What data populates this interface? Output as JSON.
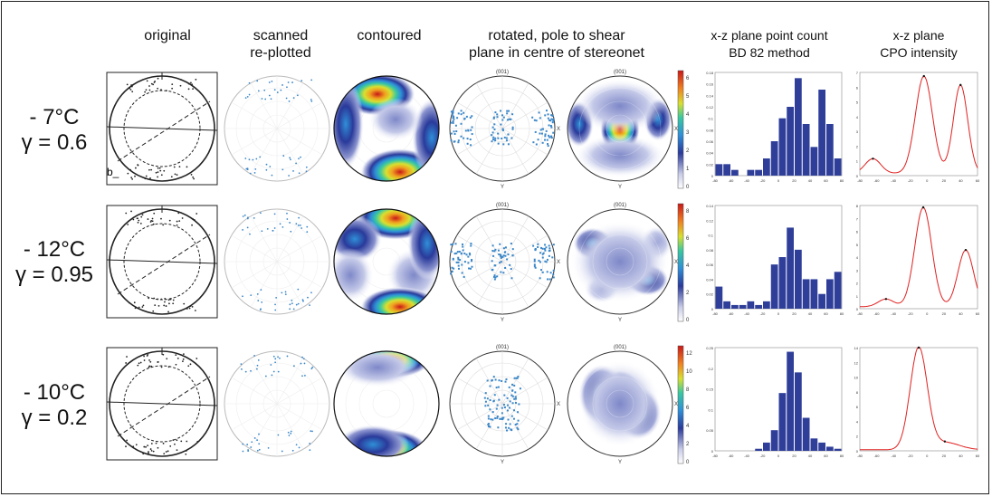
{
  "headers": {
    "original": "original",
    "scanned_1": "scanned",
    "scanned_2": "re-plotted",
    "contoured": "contoured",
    "rotated_1": "rotated, pole to shear",
    "rotated_2": "plane in centre of stereonet",
    "point_count_1": "x-z plane point count",
    "point_count_2": "BD 82 method",
    "cpo_1": "x-z plane",
    "cpo_2": "CPO intensity"
  },
  "net_labels": {
    "top": "(001)",
    "bottom": "Y",
    "right": "X"
  },
  "rows": [
    {
      "temp": "- 7°C",
      "gamma": "γ = 0.6",
      "colorbar_ticks": [
        "6",
        "5",
        "4",
        "3",
        "2",
        "1",
        "0"
      ],
      "hist": {
        "ymax": 0.18,
        "yticks": [
          "0.18",
          "0.16",
          "0.14",
          "0.12",
          "0.1",
          "0.08",
          "0.06",
          "0.04",
          "0.02",
          "0"
        ],
        "values": [
          0.02,
          0.02,
          0.01,
          0,
          0.01,
          0.01,
          0.03,
          0.06,
          0.1,
          0.12,
          0.17,
          0.09,
          0.05,
          0.15,
          0.09,
          0.03
        ]
      },
      "cpo": {
        "ymax": 7,
        "yticks": [
          "7",
          "6",
          "5",
          "4",
          "3",
          "2",
          "1",
          "0"
        ],
        "peaks": [
          [
            -70,
            1.0,
            12
          ],
          [
            8,
            6.6,
            13
          ],
          [
            64,
            6.0,
            11
          ]
        ]
      }
    },
    {
      "temp": "- 12°C",
      "gamma": "γ = 0.95",
      "colorbar_ticks": [
        "8",
        "6",
        "4",
        "2",
        "0"
      ],
      "hist": {
        "ymax": 0.14,
        "yticks": [
          "0.14",
          "0.12",
          "0.1",
          "0.08",
          "0.06",
          "0.04",
          "0.02",
          "0"
        ],
        "values": [
          0.03,
          0.01,
          0.005,
          0.005,
          0.01,
          0.005,
          0.01,
          0.06,
          0.07,
          0.11,
          0.08,
          0.04,
          0.04,
          0.02,
          0.04,
          0.05
        ]
      },
      "cpo": {
        "ymax": 8,
        "yticks": [
          "8",
          "7",
          "6",
          "5",
          "4",
          "3",
          "2",
          "1",
          "0"
        ],
        "peaks": [
          [
            -50,
            0.6,
            12
          ],
          [
            7,
            7.7,
            13
          ],
          [
            72,
            4.4,
            12
          ]
        ]
      }
    },
    {
      "temp": "- 10°C",
      "gamma": "γ = 0.2",
      "colorbar_ticks": [
        "12",
        "10",
        "8",
        "6",
        "4",
        "2",
        "0"
      ],
      "hist": {
        "ymax": 0.25,
        "yticks": [
          "0.25",
          "0.2",
          "0.15",
          "0.1",
          "0.05",
          "0"
        ],
        "values": [
          0,
          0,
          0,
          0,
          0,
          0.005,
          0.02,
          0.05,
          0.14,
          0.24,
          0.19,
          0.08,
          0.03,
          0.02,
          0.01,
          0.005
        ]
      },
      "cpo": {
        "ymax": 14,
        "yticks": [
          "14",
          "12",
          "10",
          "8",
          "6",
          "4",
          "2",
          "0"
        ],
        "peaks": [
          [
            0,
            13.8,
            13
          ],
          [
            40,
            1.0,
            22
          ]
        ]
      }
    }
  ],
  "hist_xticks": [
    "-80",
    "-60",
    "-40",
    "-20",
    "0",
    "20",
    "40",
    "60",
    "80"
  ],
  "cpo_xticks": [
    "-80",
    "-60",
    "-40",
    "-20",
    "0",
    "20",
    "40",
    "60"
  ],
  "colors": {
    "bar": "#2f3f99",
    "cpo_line": "#e02020",
    "scatter": "#3a86c8",
    "sketch": "#222222"
  },
  "stray_glyph": "b_"
}
